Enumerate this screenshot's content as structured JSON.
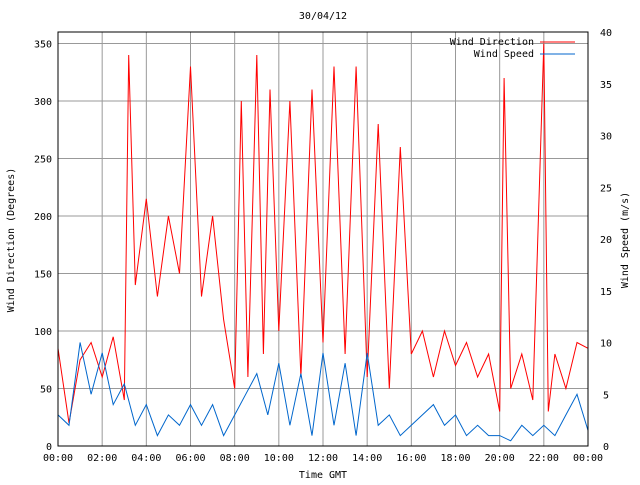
{
  "chart_data": {
    "type": "line",
    "title": "30/04/12",
    "xlabel": "Time GMT",
    "ylabel_left": "Wind Direction (Degrees)",
    "ylabel_right": "Wind Speed (m/s)",
    "x_ticks": [
      "00:00",
      "02:00",
      "04:00",
      "06:00",
      "08:00",
      "10:00",
      "12:00",
      "14:00",
      "16:00",
      "18:00",
      "20:00",
      "22:00",
      "00:00"
    ],
    "y_left_ticks": [
      "0",
      "50",
      "100",
      "150",
      "200",
      "250",
      "300",
      "350"
    ],
    "y_right_ticks": [
      "0",
      "5",
      "10",
      "15",
      "20",
      "25",
      "30",
      "35",
      "40"
    ],
    "y_left_range": [
      0,
      360
    ],
    "y_right_range": [
      0,
      40
    ],
    "x_range_hours": [
      0,
      24
    ],
    "grid": true,
    "legend_position": "top-right",
    "series": [
      {
        "name": "Wind Direction",
        "color": "#ff0000",
        "axis": "left",
        "x": [
          0,
          0.5,
          1,
          1.5,
          2,
          2.5,
          3,
          3.2,
          3.5,
          4,
          4.5,
          5,
          5.5,
          6,
          6.5,
          7,
          7.5,
          8,
          8.3,
          8.6,
          9,
          9.3,
          9.6,
          10,
          10.5,
          11,
          11.5,
          12,
          12.5,
          13,
          13.5,
          14,
          14.5,
          15,
          15.5,
          16,
          16.5,
          17,
          17.5,
          18,
          18.5,
          19,
          19.5,
          20,
          20.2,
          20.5,
          21,
          21.5,
          22,
          22.2,
          22.5,
          23,
          23.5,
          24
        ],
        "values": [
          85,
          20,
          75,
          90,
          60,
          95,
          40,
          340,
          140,
          215,
          130,
          200,
          150,
          330,
          130,
          200,
          110,
          50,
          300,
          60,
          340,
          80,
          310,
          100,
          300,
          60,
          310,
          90,
          330,
          80,
          330,
          60,
          280,
          50,
          260,
          80,
          100,
          60,
          100,
          70,
          90,
          60,
          80,
          30,
          320,
          50,
          80,
          40,
          350,
          30,
          80,
          50,
          90,
          85
        ]
      },
      {
        "name": "Wind Speed",
        "color": "#0066cc",
        "axis": "right",
        "x": [
          0,
          0.5,
          1,
          1.5,
          2,
          2.5,
          3,
          3.5,
          4,
          4.5,
          5,
          5.5,
          6,
          6.5,
          7,
          7.5,
          8,
          8.5,
          9,
          9.5,
          10,
          10.5,
          11,
          11.5,
          12,
          12.5,
          13,
          13.5,
          14,
          14.5,
          15,
          15.5,
          16,
          16.5,
          17,
          17.5,
          18,
          18.5,
          19,
          19.5,
          20,
          20.5,
          21,
          21.5,
          22,
          22.5,
          23,
          23.5,
          24
        ],
        "values": [
          3,
          2,
          10,
          5,
          9,
          4,
          6,
          2,
          4,
          1,
          3,
          2,
          4,
          2,
          4,
          1,
          3,
          5,
          7,
          3,
          8,
          2,
          7,
          1,
          9,
          2,
          8,
          1,
          9,
          2,
          3,
          1,
          2,
          3,
          4,
          2,
          3,
          1,
          2,
          1,
          1,
          0.5,
          2,
          1,
          2,
          1,
          3,
          5,
          1.5
        ]
      }
    ]
  }
}
